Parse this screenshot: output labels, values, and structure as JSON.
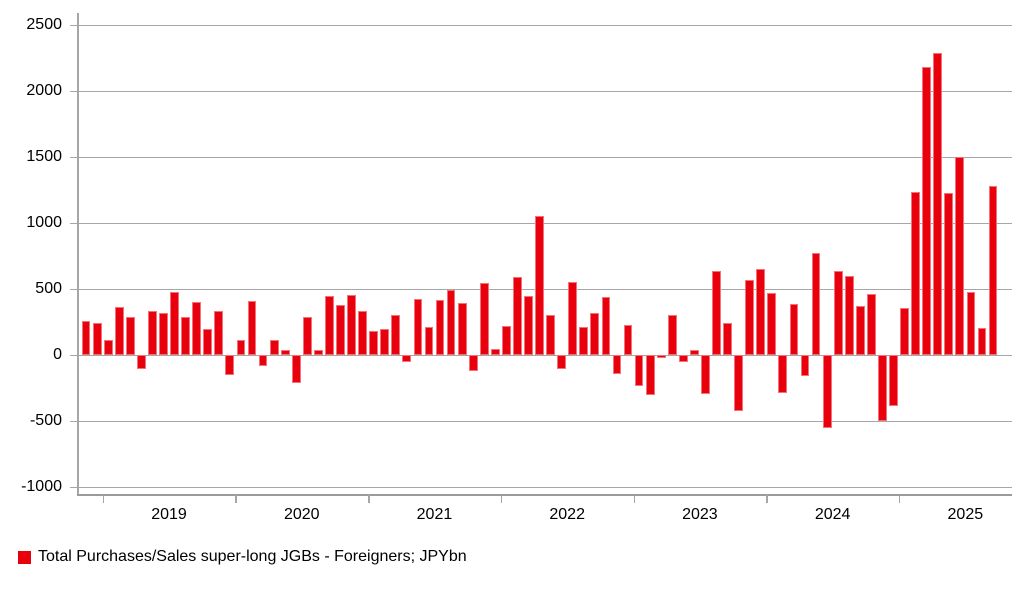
{
  "legend": {
    "label": "Total Purchases/Sales super-long JGBs - Foreigners; JPYbn",
    "swatch_color": "#e8000d"
  },
  "chart_data": {
    "type": "bar",
    "title": "",
    "series_name": "Total Purchases/Sales super-long JGBs - Foreigners",
    "unit": "JPYbn",
    "bar_color": "#e8000d",
    "grid": "horizontal",
    "legend_position": "bottom-left",
    "ylim": [
      -1000,
      2500
    ],
    "yticks": [
      2500,
      2000,
      1500,
      1000,
      500,
      0,
      -500,
      -1000
    ],
    "year_labels": [
      "2019",
      "2020",
      "2021",
      "2022",
      "2023",
      "2024",
      "2025"
    ],
    "jan_2019_index": 2,
    "x": [
      "2018-11",
      "2018-12",
      "2019-01",
      "2019-02",
      "2019-03",
      "2019-04",
      "2019-05",
      "2019-06",
      "2019-07",
      "2019-08",
      "2019-09",
      "2019-10",
      "2019-11",
      "2019-12",
      "2020-01",
      "2020-02",
      "2020-03",
      "2020-04",
      "2020-05",
      "2020-06",
      "2020-07",
      "2020-08",
      "2020-09",
      "2020-10",
      "2020-11",
      "2020-12",
      "2021-01",
      "2021-02",
      "2021-03",
      "2021-04",
      "2021-05",
      "2021-06",
      "2021-07",
      "2021-08",
      "2021-09",
      "2021-10",
      "2021-11",
      "2021-12",
      "2022-01",
      "2022-02",
      "2022-03",
      "2022-04",
      "2022-05",
      "2022-06",
      "2022-07",
      "2022-08",
      "2022-09",
      "2022-10",
      "2022-11",
      "2022-12",
      "2023-01",
      "2023-02",
      "2023-03",
      "2023-04",
      "2023-05",
      "2023-06",
      "2023-07",
      "2023-08",
      "2023-09",
      "2023-10",
      "2023-11",
      "2023-12",
      "2024-01",
      "2024-02",
      "2024-03",
      "2024-04",
      "2024-05",
      "2024-06",
      "2024-07",
      "2024-08",
      "2024-09",
      "2024-10",
      "2024-11",
      "2024-12",
      "2025-01",
      "2025-02",
      "2025-03",
      "2025-04",
      "2025-05",
      "2025-06",
      "2025-07",
      "2025-08",
      "2025-09"
    ],
    "values": [
      255,
      245,
      110,
      365,
      285,
      -105,
      335,
      315,
      480,
      290,
      400,
      200,
      330,
      -150,
      115,
      410,
      -85,
      115,
      35,
      -215,
      290,
      40,
      450,
      380,
      455,
      335,
      185,
      200,
      305,
      -55,
      425,
      210,
      420,
      490,
      395,
      -120,
      545,
      45,
      220,
      590,
      450,
      1055,
      300,
      -105,
      555,
      210,
      320,
      440,
      -145,
      230,
      -235,
      -305,
      -20,
      305,
      -50,
      35,
      -295,
      640,
      245,
      -425,
      570,
      650,
      470,
      -290,
      390,
      -160,
      775,
      -555,
      635,
      600,
      375,
      460,
      -500,
      -390,
      355,
      1235,
      2180,
      2290,
      1230,
      1500,
      480,
      205,
      1280
    ]
  }
}
